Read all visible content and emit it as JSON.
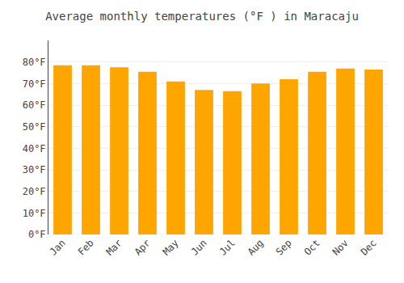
{
  "chart_data": {
    "type": "bar",
    "title": "Average monthly temperatures (°F ) in Maracaju",
    "categories": [
      "Jan",
      "Feb",
      "Mar",
      "Apr",
      "May",
      "Jun",
      "Jul",
      "Aug",
      "Sep",
      "Oct",
      "Nov",
      "Dec"
    ],
    "values": [
      78.5,
      78.5,
      77.5,
      75.5,
      71.0,
      67.0,
      66.5,
      70.0,
      72.0,
      75.5,
      77.0,
      76.5
    ],
    "color": "#FFA500",
    "ylim": [
      0,
      90
    ],
    "yticks": [
      {
        "value": 0,
        "label": "0°F"
      },
      {
        "value": 10,
        "label": "10°F"
      },
      {
        "value": 20,
        "label": "20°F"
      },
      {
        "value": 30,
        "label": "30°F"
      },
      {
        "value": 40,
        "label": "40°F"
      },
      {
        "value": 50,
        "label": "50°F"
      },
      {
        "value": 60,
        "label": "60°F"
      },
      {
        "value": 70,
        "label": "70°F"
      },
      {
        "value": 80,
        "label": "80°F"
      }
    ],
    "grid": true
  }
}
